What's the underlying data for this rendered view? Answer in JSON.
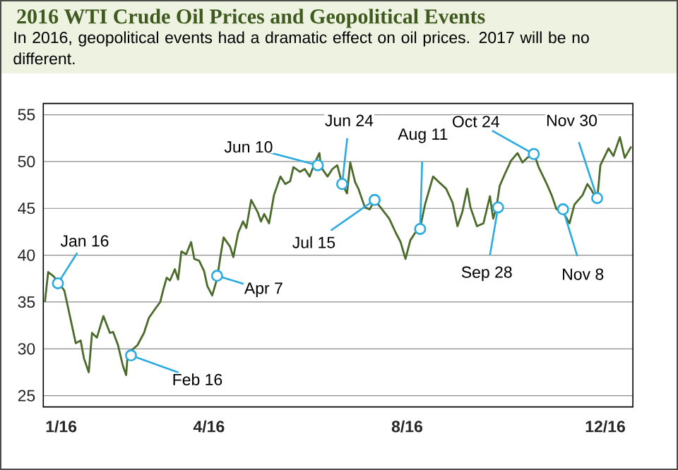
{
  "chart_data": {
    "type": "line",
    "title": "2016 WTI Crude Oil Prices and Geopolitical Events",
    "subtitle": "In 2016, geopolitical events had a dramatic effect on oil prices. 2017 will be no different.",
    "x": [
      "2015-12-22",
      "2015-12-24",
      "2015-12-27",
      "2015-12-30",
      "2016-01-03",
      "2016-01-07",
      "2016-01-10",
      "2016-01-13",
      "2016-01-15",
      "2016-01-18",
      "2016-01-20",
      "2016-01-23",
      "2016-01-27",
      "2016-01-31",
      "2016-02-02",
      "2016-02-05",
      "2016-02-08",
      "2016-02-10",
      "2016-02-11",
      "2016-02-17",
      "2016-02-21",
      "2016-02-24",
      "2016-02-28",
      "2016-03-02",
      "2016-03-04",
      "2016-03-06",
      "2016-03-08",
      "2016-03-11",
      "2016-03-13",
      "2016-03-15",
      "2016-03-18",
      "2016-03-21",
      "2016-03-23",
      "2016-03-26",
      "2016-03-29",
      "2016-03-31",
      "2016-04-03",
      "2016-04-06",
      "2016-04-08",
      "2016-04-10",
      "2016-04-14",
      "2016-04-16",
      "2016-04-19",
      "2016-04-22",
      "2016-04-24",
      "2016-04-27",
      "2016-05-01",
      "2016-05-03",
      "2016-05-05",
      "2016-05-08",
      "2016-05-11",
      "2016-05-15",
      "2016-05-18",
      "2016-05-21",
      "2016-05-23",
      "2016-05-27",
      "2016-05-30",
      "2016-06-02",
      "2016-06-05",
      "2016-06-08",
      "2016-06-09",
      "2016-06-13",
      "2016-06-16",
      "2016-06-19",
      "2016-06-22",
      "2016-06-25",
      "2016-06-27",
      "2016-06-30",
      "2016-07-02",
      "2016-07-04",
      "2016-07-06",
      "2016-07-09",
      "2016-07-12",
      "2016-07-17",
      "2016-07-21",
      "2016-07-25",
      "2016-07-28",
      "2016-07-31",
      "2016-08-03",
      "2016-08-06",
      "2016-08-09",
      "2016-08-12",
      "2016-08-17",
      "2016-08-20",
      "2016-08-25",
      "2016-08-29",
      "2016-09-01",
      "2016-09-04",
      "2016-09-07",
      "2016-09-09",
      "2016-09-13",
      "2016-09-17",
      "2016-09-21",
      "2016-09-23",
      "2016-09-25",
      "2016-09-27",
      "2016-09-30",
      "2016-10-04",
      "2016-10-08",
      "2016-10-11",
      "2016-10-14",
      "2016-10-18",
      "2016-10-21",
      "2016-10-26",
      "2016-10-29",
      "2016-11-01",
      "2016-11-05",
      "2016-11-09",
      "2016-11-12",
      "2016-11-17",
      "2016-11-20",
      "2016-11-22",
      "2016-11-26",
      "2016-11-28",
      "2016-12-03",
      "2016-12-06",
      "2016-12-10",
      "2016-12-13",
      "2016-12-17"
    ],
    "series": [
      {
        "color": "#4b6b2a",
        "values": [
          35.0,
          38.2,
          37.8,
          37.2,
          36.2,
          33.0,
          30.6,
          30.9,
          29.0,
          27.5,
          31.7,
          31.2,
          33.5,
          31.7,
          31.8,
          30.4,
          28.2,
          27.2,
          29.5,
          30.4,
          31.7,
          33.3,
          34.3,
          35.0,
          36.4,
          37.6,
          37.3,
          38.5,
          37.4,
          40.4,
          40.1,
          41.4,
          39.6,
          39.4,
          38.3,
          36.7,
          35.7,
          37.5,
          39.8,
          41.9,
          40.9,
          39.8,
          42.4,
          43.6,
          42.9,
          45.9,
          44.6,
          43.6,
          44.4,
          43.4,
          46.4,
          48.4,
          47.6,
          47.9,
          49.4,
          48.9,
          49.2,
          48.4,
          49.8,
          50.9,
          49.4,
          48.4,
          49.2,
          49.6,
          47.6,
          46.6,
          49.9,
          47.8,
          47.1,
          46.1,
          45.1,
          44.9,
          45.9,
          44.8,
          43.9,
          42.4,
          41.4,
          39.6,
          41.6,
          42.4,
          42.9,
          45.4,
          48.4,
          47.9,
          47.1,
          45.6,
          43.1,
          44.6,
          47.1,
          45.1,
          43.1,
          43.4,
          46.3,
          43.9,
          45.1,
          47.4,
          48.6,
          50.1,
          50.9,
          49.9,
          50.4,
          50.9,
          49.4,
          47.6,
          46.4,
          44.9,
          44.6,
          43.4,
          45.4,
          46.4,
          47.6,
          47.1,
          45.9,
          49.6,
          51.4,
          50.6,
          52.6,
          50.4,
          51.6
        ]
      }
    ],
    "xlim": [
      "2015-12-21",
      "2016-12-18"
    ],
    "xticks": [
      {
        "value": "2016-01-01",
        "label": "1/16"
      },
      {
        "value": "2016-04-01",
        "label": "4/16"
      },
      {
        "value": "2016-08-01",
        "label": "8/16"
      },
      {
        "value": "2016-12-01",
        "label": "12/16"
      }
    ],
    "ylim": [
      23.8,
      56.2
    ],
    "yticks": [
      25,
      30,
      35,
      40,
      45,
      50,
      55
    ],
    "grid": "y",
    "marker": "none",
    "annotations": [
      {
        "text": "Jan 16",
        "x": "2015-12-30",
        "y": 37.0
      },
      {
        "text": "Feb 16",
        "x": "2016-02-13",
        "y": 29.3
      },
      {
        "text": "Apr 7",
        "x": "2016-04-06",
        "y": 37.8
      },
      {
        "text": "Jun 10",
        "x": "2016-06-07",
        "y": 49.6
      },
      {
        "text": "Jun 24",
        "x": "2016-06-22",
        "y": 47.6
      },
      {
        "text": "Jul 15",
        "x": "2016-07-12",
        "y": 45.9
      },
      {
        "text": "Aug 11",
        "x": "2016-08-09",
        "y": 42.8
      },
      {
        "text": "Sep 28",
        "x": "2016-09-26",
        "y": 45.1
      },
      {
        "text": "Oct 24",
        "x": "2016-10-18",
        "y": 50.8
      },
      {
        "text": "Nov 8",
        "x": "2016-11-05",
        "y": 44.9
      },
      {
        "text": "Nov 30",
        "x": "2016-11-26",
        "y": 46.1
      }
    ]
  }
}
